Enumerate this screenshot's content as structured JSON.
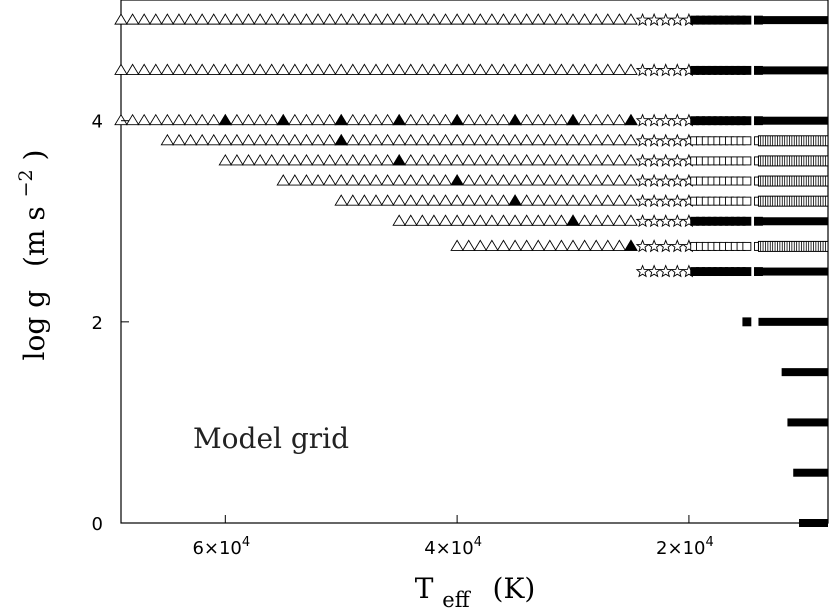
{
  "chart_data": {
    "type": "scatter",
    "title": "",
    "annotation": "Model grid",
    "xlabel": {
      "main": "T",
      "sub": "eff",
      "unit": "(K)"
    },
    "ylabel": {
      "main": "log g",
      "unit_base": "(m s",
      "unit_exp": "−2",
      "unit_close": ")"
    },
    "x_reversed": true,
    "xlim": [
      69000,
      8000
    ],
    "ylim": [
      0,
      5.2
    ],
    "x_ticks": [
      {
        "value": 60000,
        "mantissa": "6×10",
        "exp": "4"
      },
      {
        "value": 40000,
        "mantissa": "4×10",
        "exp": "4"
      },
      {
        "value": 20000,
        "mantissa": "2×10",
        "exp": "4"
      }
    ],
    "y_ticks": [
      {
        "value": 0,
        "label": "0"
      },
      {
        "value": 2,
        "label": "2"
      },
      {
        "value": 4,
        "label": "4"
      }
    ],
    "grid": false,
    "legend": "none",
    "series": [
      {
        "marker": "open-triangle",
        "step": 1000,
        "segments": [
          {
            "logg": 5.0,
            "t_from": 69000,
            "t_to": 25000
          },
          {
            "logg": 4.5,
            "t_from": 69000,
            "t_to": 25000
          },
          {
            "logg": 4.0,
            "t_from": 69000,
            "t_to": 25000
          },
          {
            "logg": 3.8,
            "t_from": 65000,
            "t_to": 25000
          },
          {
            "logg": 3.6,
            "t_from": 60000,
            "t_to": 25000
          },
          {
            "logg": 3.4,
            "t_from": 55000,
            "t_to": 25000
          },
          {
            "logg": 3.2,
            "t_from": 50000,
            "t_to": 25000
          },
          {
            "logg": 3.0,
            "t_from": 45000,
            "t_to": 25000
          },
          {
            "logg": 2.75,
            "t_from": 40000,
            "t_to": 25000
          }
        ]
      },
      {
        "marker": "filled-triangle",
        "points": [
          [
            60000,
            4.0
          ],
          [
            55000,
            4.0
          ],
          [
            50000,
            4.0
          ],
          [
            45000,
            4.0
          ],
          [
            40000,
            4.0
          ],
          [
            35000,
            4.0
          ],
          [
            30000,
            4.0
          ],
          [
            25000,
            4.0
          ],
          [
            50000,
            3.8
          ],
          [
            45000,
            3.6
          ],
          [
            40000,
            3.4
          ],
          [
            35000,
            3.2
          ],
          [
            30000,
            3.0
          ],
          [
            25000,
            2.75
          ]
        ]
      },
      {
        "marker": "open-star",
        "t_values": [
          24000,
          23000,
          22000,
          21000,
          20000
        ],
        "logg": [
          5.0,
          4.5,
          4.0,
          3.8,
          3.6,
          3.4,
          3.2,
          3.0,
          2.75,
          2.5
        ]
      },
      {
        "marker": "filled-square",
        "t_values": [
          19500,
          19000,
          18500,
          18000,
          17500,
          17000,
          16500,
          16000,
          15500,
          15000,
          14000
        ],
        "logg": [
          5.0,
          4.5,
          4.0,
          3.0,
          2.5
        ]
      },
      {
        "marker": "open-square",
        "t_values": [
          19500,
          19000,
          18500,
          18000,
          17500,
          17000,
          16500,
          16000,
          15500,
          15000,
          14000
        ],
        "logg": [
          3.8,
          3.6,
          3.4,
          3.2,
          2.75
        ]
      },
      {
        "marker": "filled-square",
        "points": [
          [
            15000,
            2.0
          ]
        ]
      },
      {
        "marker": "dense-open",
        "note": "tightly spaced model sequence",
        "segments": [
          {
            "logg": 3.8,
            "t_from": 14000,
            "t_to": 8000
          },
          {
            "logg": 3.6,
            "t_from": 14000,
            "t_to": 8000
          },
          {
            "logg": 3.4,
            "t_from": 14000,
            "t_to": 8000
          },
          {
            "logg": 3.2,
            "t_from": 14000,
            "t_to": 8000
          },
          {
            "logg": 2.75,
            "t_from": 14000,
            "t_to": 8000
          }
        ]
      },
      {
        "marker": "dense-filled",
        "note": "tightly spaced model sequence",
        "segments": [
          {
            "logg": 5.0,
            "t_from": 14000,
            "t_to": 8000
          },
          {
            "logg": 4.5,
            "t_from": 14000,
            "t_to": 8000
          },
          {
            "logg": 4.0,
            "t_from": 14000,
            "t_to": 8000
          },
          {
            "logg": 3.0,
            "t_from": 14000,
            "t_to": 8000
          },
          {
            "logg": 2.5,
            "t_from": 14000,
            "t_to": 8000
          },
          {
            "logg": 2.0,
            "t_from": 14000,
            "t_to": 8000
          },
          {
            "logg": 1.5,
            "t_from": 12000,
            "t_to": 8000
          },
          {
            "logg": 1.0,
            "t_from": 11500,
            "t_to": 8000
          },
          {
            "logg": 0.5,
            "t_from": 11000,
            "t_to": 8000
          },
          {
            "logg": 0.0,
            "t_from": 10500,
            "t_to": 8000
          }
        ]
      }
    ]
  }
}
